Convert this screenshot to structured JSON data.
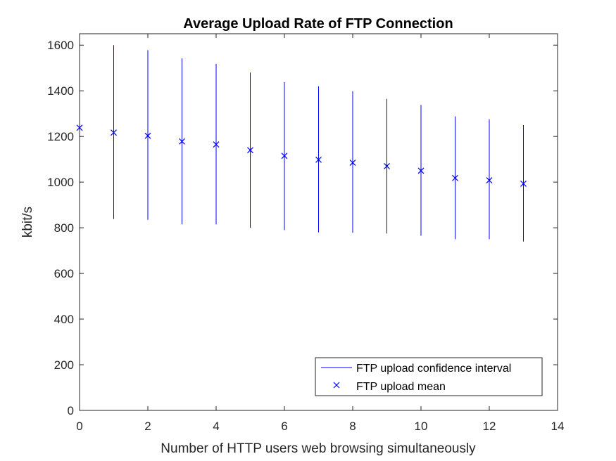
{
  "chart_data": {
    "type": "errorbar",
    "title": "Average Upload Rate of FTP Connection",
    "xlabel": "Number of HTTP users web browsing simultaneously",
    "ylabel": "kbit/s",
    "xlim": [
      0,
      14
    ],
    "ylim": [
      0,
      1650
    ],
    "xticks": [
      0,
      2,
      4,
      6,
      8,
      10,
      12,
      14
    ],
    "yticks": [
      0,
      200,
      400,
      600,
      800,
      1000,
      1200,
      1400,
      1600
    ],
    "grid": false,
    "legend_position": "bottom-right",
    "color": "#0000ff",
    "series": [
      {
        "name": "FTP upload confidence interval",
        "style": "vertical-line",
        "x": [
          1,
          2,
          3,
          4,
          5,
          6,
          7,
          8,
          9,
          10,
          11,
          12,
          13
        ],
        "lower": [
          838,
          835,
          815,
          815,
          800,
          790,
          780,
          778,
          775,
          765,
          750,
          750,
          740
        ],
        "upper": [
          1600,
          1578,
          1542,
          1518,
          1480,
          1438,
          1420,
          1398,
          1365,
          1338,
          1288,
          1275,
          1250
        ]
      },
      {
        "name": "FTP upload mean",
        "style": "x-marker",
        "x": [
          0,
          1,
          2,
          3,
          4,
          5,
          6,
          7,
          8,
          9,
          10,
          11,
          12,
          13
        ],
        "values": [
          1238,
          1217,
          1203,
          1178,
          1165,
          1140,
          1115,
          1098,
          1085,
          1070,
          1050,
          1018,
          1008,
          993
        ]
      }
    ]
  }
}
